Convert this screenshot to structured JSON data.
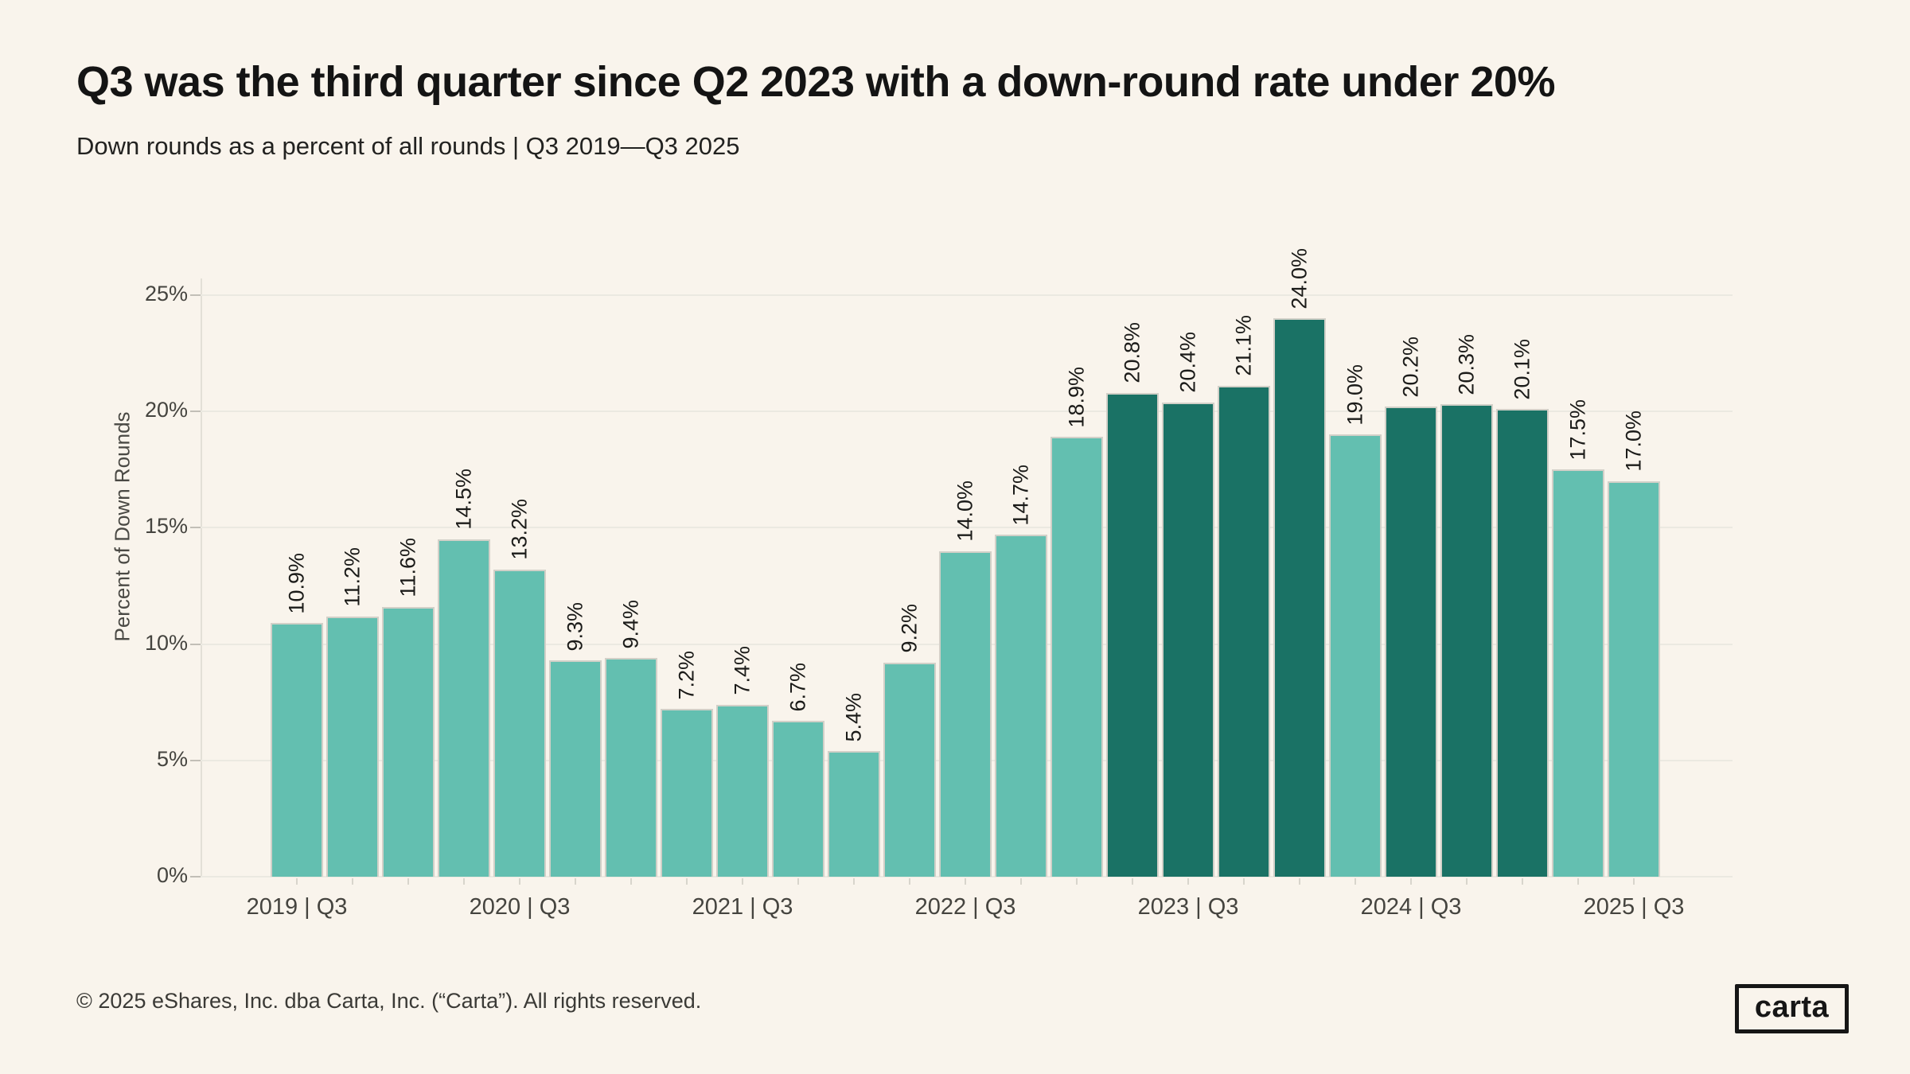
{
  "header": {
    "title": "Q3 was the third quarter since Q2 2023 with a down-round rate under 20%",
    "subtitle": "Down rounds as a percent of all rounds | Q3 2019—Q3 2025"
  },
  "footer": {
    "copyright": "© 2025 eShares, Inc. dba Carta, Inc. (“Carta”). All rights reserved.",
    "logo_text": "carta"
  },
  "chart_data": {
    "type": "bar",
    "title": "Q3 was the third quarter since Q2 2023 with a down-round rate under 20%",
    "subtitle": "Down rounds as a percent of all rounds | Q3 2019—Q3 2025",
    "xlabel": "",
    "ylabel": "Percent of Down Rounds",
    "ylim": [
      0,
      25
    ],
    "grid": true,
    "legend": false,
    "highlight_rule": "bars with value >= 20 use dark color",
    "colors": {
      "bar": "#63bfb0",
      "bar_highlight": "#1a7265",
      "background": "#f9f4ec",
      "gridline": "#ebe9e1",
      "bar_border": "#d2d0c8"
    },
    "y_axis": {
      "title": "Percent of Down Rounds",
      "ticks": [
        {
          "value": 0,
          "label": "0%"
        },
        {
          "value": 5,
          "label": "5%"
        },
        {
          "value": 10,
          "label": "10%"
        },
        {
          "value": 15,
          "label": "15%"
        },
        {
          "value": 20,
          "label": "20%"
        },
        {
          "value": 25,
          "label": "25%"
        }
      ]
    },
    "x_axis": {
      "labels": [
        {
          "bar_index": 0,
          "label": "2019 | Q3"
        },
        {
          "bar_index": 4,
          "label": "2020 | Q3"
        },
        {
          "bar_index": 8,
          "label": "2021 | Q3"
        },
        {
          "bar_index": 12,
          "label": "2022 | Q3"
        },
        {
          "bar_index": 16,
          "label": "2023 | Q3"
        },
        {
          "bar_index": 20,
          "label": "2024 | Q3"
        },
        {
          "bar_index": 24,
          "label": "2025 | Q3"
        }
      ]
    },
    "categories": [
      "2019 Q3",
      "2019 Q4",
      "2020 Q1",
      "2020 Q2",
      "2020 Q3",
      "2020 Q4",
      "2021 Q1",
      "2021 Q2",
      "2021 Q3",
      "2021 Q4",
      "2022 Q1",
      "2022 Q2",
      "2022 Q3",
      "2022 Q4",
      "2023 Q1",
      "2023 Q2",
      "2023 Q3",
      "2023 Q4",
      "2024 Q1",
      "2024 Q2",
      "2024 Q3",
      "2024 Q4",
      "2025 Q1",
      "2025 Q2",
      "2025 Q3"
    ],
    "values": [
      10.9,
      11.2,
      11.6,
      14.5,
      13.2,
      9.3,
      9.4,
      7.2,
      7.4,
      6.7,
      5.4,
      9.2,
      14.0,
      14.7,
      18.9,
      20.8,
      20.4,
      21.1,
      24.0,
      19.0,
      20.2,
      20.3,
      20.1,
      17.5,
      17.0
    ],
    "bar_labels": [
      "10.9%",
      "11.2%",
      "11.6%",
      "14.5%",
      "13.2%",
      "9.3%",
      "9.4%",
      "7.2%",
      "7.4%",
      "6.7%",
      "5.4%",
      "9.2%",
      "14.0%",
      "14.7%",
      "18.9%",
      "20.8%",
      "20.4%",
      "21.1%",
      "24.0%",
      "19.0%",
      "20.2%",
      "20.3%",
      "20.1%",
      "17.5%",
      "17.0%"
    ],
    "highlighted": [
      false,
      false,
      false,
      false,
      false,
      false,
      false,
      false,
      false,
      false,
      false,
      false,
      false,
      false,
      false,
      true,
      true,
      true,
      true,
      false,
      true,
      true,
      true,
      false,
      false
    ]
  }
}
